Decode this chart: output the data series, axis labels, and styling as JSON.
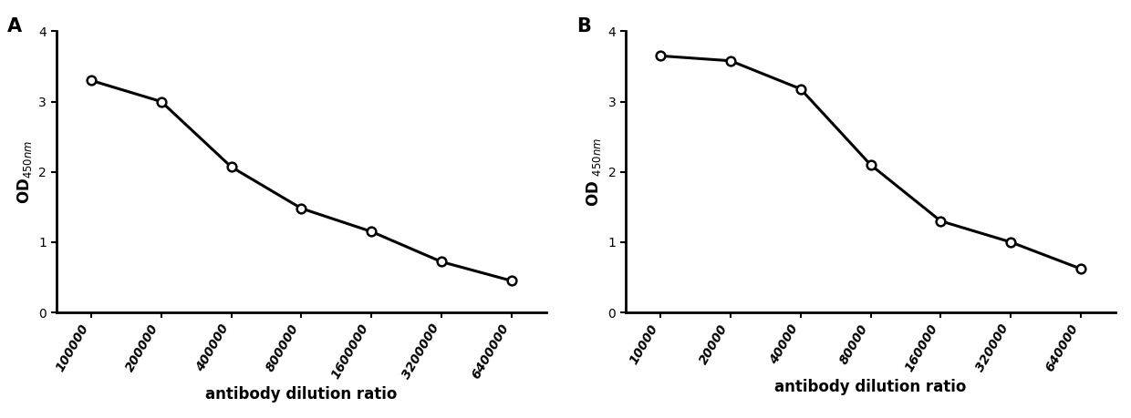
{
  "panel_A": {
    "x_labels": [
      "100000",
      "200000",
      "400000",
      "800000",
      "1600000",
      "3200000",
      "6400000"
    ],
    "y_values": [
      3.3,
      3.0,
      2.07,
      1.48,
      1.15,
      0.72,
      0.45
    ],
    "panel_label": "A",
    "ylim": [
      0,
      4
    ],
    "yticks": [
      0,
      1,
      2,
      3,
      4
    ],
    "ylabel_A": "OD$_{450nm}$"
  },
  "panel_B": {
    "x_labels": [
      "10000",
      "20000",
      "40000",
      "80000",
      "160000",
      "320000",
      "640000"
    ],
    "y_values": [
      3.65,
      3.58,
      3.18,
      2.1,
      1.3,
      1.0,
      0.62
    ],
    "panel_label": "B",
    "ylim": [
      0,
      4
    ],
    "yticks": [
      0,
      1,
      2,
      3,
      4
    ],
    "ylabel_B": "OD $_{450nm}$"
  },
  "xlabel": "antibody dilution ratio",
  "line_color": "#000000",
  "marker": "o",
  "marker_facecolor": "white",
  "marker_edgecolor": "#000000",
  "marker_size": 7,
  "linewidth": 2.2,
  "background_color": "#ffffff",
  "tick_labelsize": 10,
  "label_fontsize": 12,
  "panel_label_fontsize": 15,
  "tick_rotation": 60
}
